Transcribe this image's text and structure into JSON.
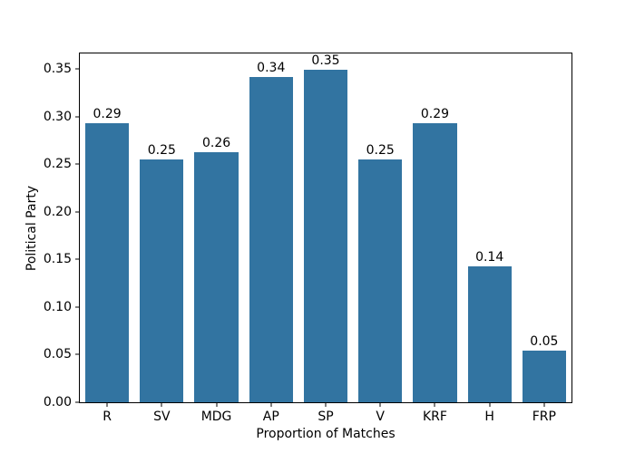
{
  "chart_data": {
    "type": "bar",
    "title": "",
    "xlabel": "Proportion of Matches",
    "ylabel": "Political Party",
    "categories": [
      "R",
      "SV",
      "MDG",
      "AP",
      "SP",
      "V",
      "KRF",
      "H",
      "FRP"
    ],
    "values": [
      0.293,
      0.255,
      0.263,
      0.342,
      0.349,
      0.255,
      0.293,
      0.143,
      0.054
    ],
    "bar_labels": [
      "0.29",
      "0.25",
      "0.26",
      "0.34",
      "0.35",
      "0.25",
      "0.29",
      "0.14",
      "0.05"
    ],
    "yticks": [
      0.0,
      0.05,
      0.1,
      0.15,
      0.2,
      0.25,
      0.3,
      0.35
    ],
    "ytick_labels": [
      "0.00",
      "0.05",
      "0.10",
      "0.15",
      "0.20",
      "0.25",
      "0.30",
      "0.35"
    ],
    "ylim": [
      0,
      0.3665
    ],
    "bar_width_fraction": 0.8,
    "grid": false,
    "legend": null,
    "bar_color": "#3274a1",
    "axis_color": "#000000",
    "text_color": "#000000",
    "background_color": "#ffffff"
  }
}
